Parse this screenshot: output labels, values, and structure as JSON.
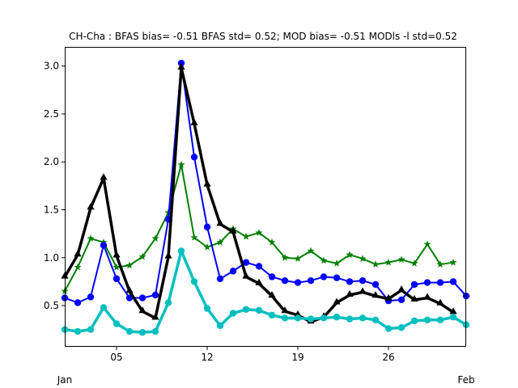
{
  "chart_data": {
    "type": "line",
    "title": "CH-Cha   : BFAS bias= -0.51 BFAS std= 0.52; MOD bias= -0.51 MODls -l std=0.52",
    "x_start_label": "Jan",
    "x_end_label": "Feb",
    "x": [
      1,
      2,
      3,
      4,
      5,
      6,
      7,
      8,
      9,
      10,
      11,
      12,
      13,
      14,
      15,
      16,
      17,
      18,
      19,
      20,
      21,
      22,
      23,
      24,
      25,
      26,
      27,
      28,
      29,
      30,
      31,
      32
    ],
    "xlim": [
      1,
      32
    ],
    "ylim": [
      0.07,
      3.2
    ],
    "xticks": [
      {
        "value": 5,
        "label": "05"
      },
      {
        "value": 12,
        "label": "12"
      },
      {
        "value": 19,
        "label": "19"
      },
      {
        "value": 26,
        "label": "26"
      }
    ],
    "yticks": [
      {
        "value": 0.5,
        "label": "0.5"
      },
      {
        "value": 1.0,
        "label": "1.0"
      },
      {
        "value": 1.5,
        "label": "1.5"
      },
      {
        "value": 2.0,
        "label": "2.0"
      },
      {
        "value": 2.5,
        "label": "2.5"
      },
      {
        "value": 3.0,
        "label": "3.0"
      }
    ],
    "grid": false,
    "series": [
      {
        "color": "#008000",
        "marker": "star",
        "width": 2,
        "values": [
          0.65,
          0.9,
          1.2,
          1.16,
          0.9,
          0.92,
          1.01,
          1.2,
          1.47,
          1.97,
          1.21,
          1.11,
          1.16,
          1.3,
          1.22,
          1.26,
          1.16,
          1.0,
          0.99,
          1.07,
          0.97,
          0.94,
          1.03,
          0.99,
          0.93,
          0.95,
          0.98,
          0.94,
          1.14,
          0.93,
          0.95,
          null
        ]
      },
      {
        "color": "#0000ff",
        "marker": "circle",
        "width": 2,
        "values": [
          0.58,
          0.53,
          0.59,
          1.13,
          0.78,
          0.58,
          0.58,
          0.61,
          1.4,
          3.03,
          2.05,
          1.32,
          0.78,
          0.86,
          0.95,
          0.91,
          0.8,
          0.76,
          0.74,
          0.76,
          0.8,
          0.79,
          0.75,
          0.76,
          0.72,
          0.55,
          0.56,
          0.72,
          0.74,
          0.74,
          0.75,
          0.6
        ]
      },
      {
        "color": "#000000",
        "marker": "triangle",
        "width": 3.5,
        "values": [
          0.8,
          1.03,
          1.52,
          1.83,
          1.02,
          0.65,
          0.44,
          0.37,
          1.01,
          2.98,
          2.4,
          1.76,
          1.35,
          1.27,
          0.8,
          0.73,
          0.6,
          0.44,
          0.4,
          0.33,
          0.38,
          0.53,
          0.61,
          0.64,
          0.6,
          0.57,
          0.66,
          0.56,
          0.58,
          0.52,
          0.43,
          null
        ]
      },
      {
        "color": "#00bfbf",
        "marker": "circle",
        "width": 3.5,
        "values": [
          0.25,
          0.23,
          0.25,
          0.48,
          0.31,
          0.23,
          0.22,
          0.23,
          0.53,
          1.07,
          0.75,
          0.47,
          0.29,
          0.42,
          0.46,
          0.45,
          0.4,
          0.37,
          0.37,
          0.36,
          0.37,
          0.38,
          0.36,
          0.37,
          0.35,
          0.26,
          0.27,
          0.34,
          0.35,
          0.35,
          0.38,
          0.3
        ]
      }
    ]
  }
}
